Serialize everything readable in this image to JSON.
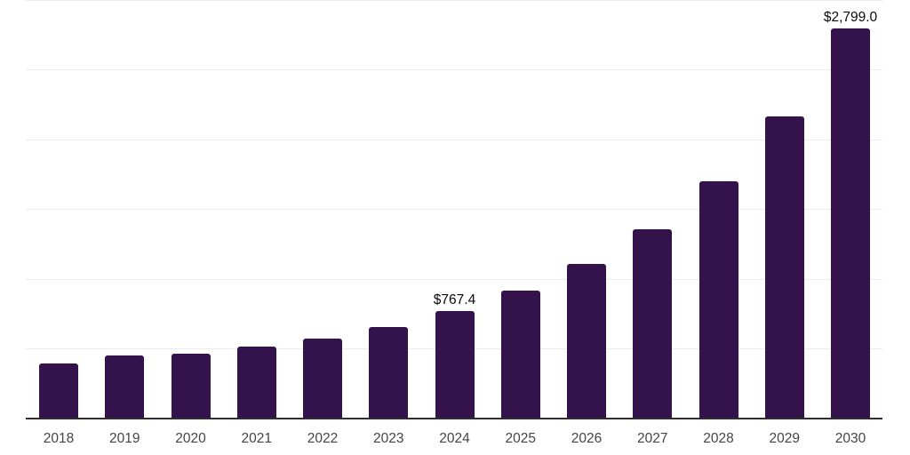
{
  "chart_data": {
    "type": "bar",
    "title": "",
    "xlabel": "",
    "ylabel": "",
    "categories": [
      "2018",
      "2019",
      "2020",
      "2021",
      "2022",
      "2023",
      "2024",
      "2025",
      "2026",
      "2027",
      "2028",
      "2029",
      "2030"
    ],
    "values": [
      390,
      452,
      464,
      515,
      573,
      656,
      767.4,
      917,
      1108,
      1355,
      1700,
      2165,
      2799.0
    ],
    "value_labels": {
      "2024": "$767.4",
      "2030": "$2,799.0"
    },
    "ylim": [
      0,
      3000
    ],
    "gridline_interval": 500,
    "grid": true,
    "legend": false,
    "y_axis_labels_visible": false,
    "colors": {
      "bar": "#34124C",
      "gridline": "#EDEDED",
      "axis_line": "#2E2E2E",
      "tick_label": "#454545",
      "value_label": "#0A0A0A",
      "background": "#FFFFFF"
    }
  }
}
